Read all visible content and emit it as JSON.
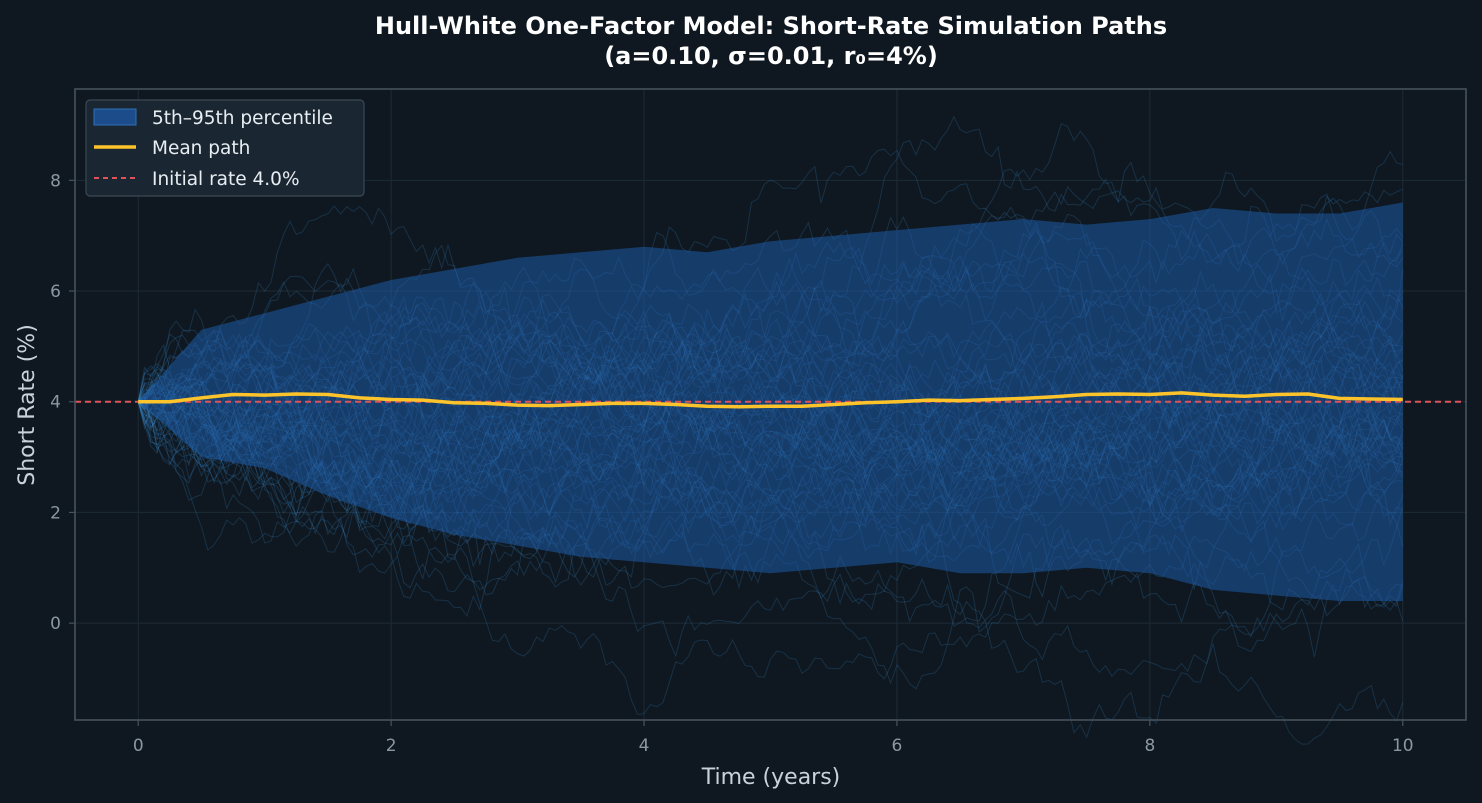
{
  "chart_data": {
    "type": "line",
    "title_line1": "Hull-White One-Factor Model: Short-Rate Simulation Paths",
    "title_line2": "(a=0.10, σ=0.01, r₀=4%)",
    "xlabel": "Time (years)",
    "ylabel": "Short Rate (%)",
    "xlim": [
      -0.5,
      10.5
    ],
    "ylim": [
      -1.75,
      9.65
    ],
    "xticks": [
      0,
      2,
      4,
      6,
      8,
      10
    ],
    "yticks": [
      0,
      2,
      4,
      6,
      8
    ],
    "grid": true,
    "legend_position": "upper-left",
    "legend": [
      {
        "label": "5th–95th percentile",
        "kind": "band"
      },
      {
        "label": "Mean path",
        "kind": "line"
      },
      {
        "label": "Initial rate 4.0%",
        "kind": "dashed"
      }
    ],
    "initial_rate": 4.0,
    "band": {
      "x": [
        0,
        0.5,
        1,
        1.5,
        2,
        2.5,
        3,
        3.5,
        4,
        4.5,
        5,
        5.5,
        6,
        6.5,
        7,
        7.5,
        8,
        8.5,
        9,
        9.5,
        10
      ],
      "upper": [
        4.0,
        5.3,
        5.6,
        5.9,
        6.2,
        6.4,
        6.6,
        6.7,
        6.8,
        6.7,
        6.9,
        7.0,
        7.1,
        7.2,
        7.3,
        7.2,
        7.3,
        7.5,
        7.4,
        7.4,
        7.6
      ],
      "lower": [
        4.0,
        3.0,
        2.8,
        2.3,
        1.9,
        1.6,
        1.4,
        1.2,
        1.1,
        1.0,
        0.9,
        1.0,
        1.1,
        0.9,
        0.9,
        1.0,
        0.9,
        0.6,
        0.5,
        0.4,
        0.4
      ]
    },
    "series": [
      {
        "name": "Mean path",
        "x": [
          0,
          0.25,
          0.5,
          0.75,
          1,
          1.25,
          1.5,
          1.75,
          2,
          2.25,
          2.5,
          2.75,
          3,
          3.25,
          3.5,
          3.75,
          4,
          4.25,
          4.5,
          4.75,
          5,
          5.25,
          5.5,
          5.75,
          6,
          6.25,
          6.5,
          6.75,
          7,
          7.25,
          7.5,
          7.75,
          8,
          8.25,
          8.5,
          8.75,
          9,
          9.25,
          9.5,
          9.75,
          10
        ],
        "values": [
          4.0,
          4.0,
          4.07,
          4.13,
          4.12,
          4.14,
          4.13,
          4.07,
          4.04,
          4.03,
          3.98,
          3.97,
          3.94,
          3.93,
          3.95,
          3.97,
          3.97,
          3.95,
          3.92,
          3.91,
          3.92,
          3.92,
          3.95,
          3.98,
          4.0,
          4.03,
          4.02,
          4.04,
          4.06,
          4.09,
          4.13,
          4.14,
          4.13,
          4.16,
          4.12,
          4.1,
          4.13,
          4.14,
          4.06,
          4.05,
          4.04
        ]
      }
    ]
  },
  "colors": {
    "background": "#0f1820",
    "band": "#1d5ba8",
    "paths": "#3c8fd2",
    "mean": "#fcc42a",
    "initial": "#e0525a",
    "grid": "#1d2a35",
    "axis": "#46535e"
  }
}
